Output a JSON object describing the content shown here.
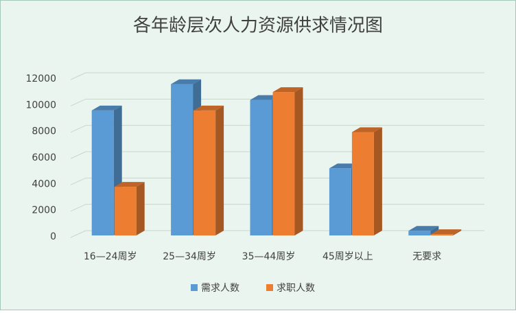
{
  "chart_data": {
    "type": "bar3d",
    "title": "各年龄层次人力资源供求情况图",
    "categories": [
      "16—24周岁",
      "25—34周岁",
      "35—44周岁",
      "45周岁以上",
      "无要求"
    ],
    "series": [
      {
        "name": "需求人数",
        "color": "#5b9bd5",
        "values": [
          9500,
          11500,
          10300,
          5100,
          350
        ]
      },
      {
        "name": "求职人数",
        "color": "#ed7d31",
        "values": [
          3700,
          9500,
          10900,
          7850,
          100
        ]
      }
    ],
    "ylim": [
      0,
      12000
    ],
    "yticks": [
      0,
      2000,
      4000,
      6000,
      8000,
      10000,
      12000
    ],
    "grid": true
  }
}
